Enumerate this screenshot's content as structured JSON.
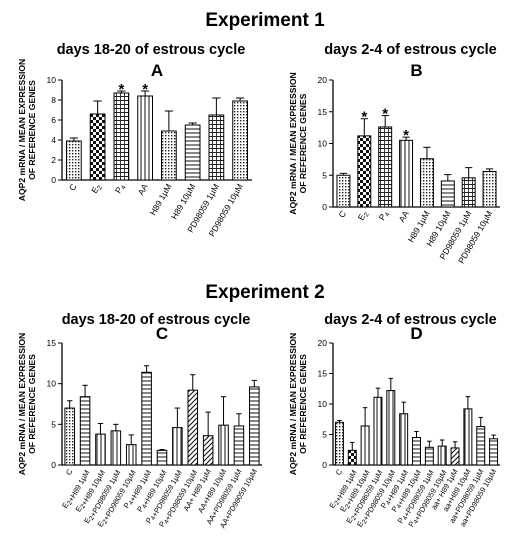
{
  "figure": {
    "experiment_titles": [
      "Experiment 1",
      "Experiment 2"
    ],
    "ylabel_line1": "AQP2 mRNA / MEAN EXPRESSION",
    "ylabel_line2": "OF REFERENCE GENES",
    "asterisk": "*"
  },
  "chart_data": [
    {
      "type": "bar",
      "panel_label": "A",
      "title": "days 18-20 of estrous cycle",
      "ylim": [
        0,
        10
      ],
      "yticks": [
        0,
        2,
        4,
        6,
        8,
        10
      ],
      "categories": [
        "C",
        "E2",
        "P4",
        "AA",
        "H89 1uM",
        "H89 10uM",
        "PD98059 1uM",
        "PD98059 10uM"
      ],
      "values": [
        3.9,
        6.6,
        8.7,
        8.4,
        4.9,
        5.5,
        6.5,
        7.9
      ],
      "errors": [
        0.3,
        1.3,
        0.2,
        0.5,
        2.0,
        0.2,
        1.7,
        0.3
      ],
      "significant": [
        false,
        false,
        true,
        true,
        false,
        false,
        false,
        false
      ],
      "patterns": [
        "dots",
        "checker",
        "cross",
        "vlines",
        "dots",
        "hlines",
        "cross",
        "dots"
      ]
    },
    {
      "type": "bar",
      "panel_label": "B",
      "title": "days 2-4 of estrous cycle",
      "ylim": [
        0,
        20
      ],
      "yticks": [
        0,
        5,
        10,
        15,
        20
      ],
      "categories": [
        "C",
        "E2",
        "P4",
        "AA",
        "H89 1uM",
        "H89 10uM",
        "PD98059 1uM",
        "PD98059 10uM"
      ],
      "values": [
        5.0,
        11.2,
        12.6,
        10.5,
        7.6,
        4.1,
        4.6,
        5.6
      ],
      "errors": [
        0.3,
        2.7,
        1.8,
        0.5,
        1.8,
        1.0,
        1.6,
        0.4
      ],
      "significant": [
        false,
        true,
        true,
        true,
        false,
        false,
        false,
        false
      ],
      "patterns": [
        "dots",
        "checker",
        "cross",
        "vlines",
        "dots",
        "hlines",
        "cross",
        "dots"
      ]
    },
    {
      "type": "bar",
      "panel_label": "C",
      "title": "days 18-20 of estrous cycle",
      "ylim": [
        0,
        15
      ],
      "yticks": [
        0,
        5,
        10,
        15
      ],
      "categories": [
        "C",
        "E2+H89 1uM",
        "E2+H89 10uM",
        "E2+PD98059 1uM",
        "E2+PD98059 10uM",
        "P4+H89 1uM",
        "P4+H89 10uM",
        "P4+PD98059 1uM",
        "P4+PD98059 10uM",
        "AA+ H89 1uM",
        "AA+H89 10uM",
        "AA+PD98059 1uM",
        "AA+PD98059 10uM"
      ],
      "values": [
        7.0,
        8.4,
        3.8,
        4.2,
        2.5,
        11.4,
        1.8,
        4.6,
        9.2,
        3.6,
        4.9,
        4.8,
        9.6
      ],
      "errors": [
        0.9,
        1.4,
        1.3,
        0.8,
        1.2,
        0.8,
        0.1,
        2.4,
        1.9,
        2.9,
        3.5,
        1.5,
        0.8
      ],
      "patterns": [
        "dots",
        "hlines",
        "vlines",
        "vlines",
        "vlines",
        "hlines",
        "hlines",
        "vlines",
        "diag",
        "diag",
        "vlines",
        "hlines",
        "hlines"
      ]
    },
    {
      "type": "bar",
      "panel_label": "D",
      "title": "days 2-4 of estrous cycle",
      "ylim": [
        0,
        20
      ],
      "yticks": [
        0,
        5,
        10,
        15,
        20
      ],
      "categories": [
        "C",
        "E2+H89 1uM",
        "E2+H89 10uM",
        "E2+PD98059 1uM",
        "E2+PD98059 10uM",
        "P4+H89 1uM",
        "P4+H89 10uM",
        "P4+PD98059 1uM",
        "P4+PD98059 10uM",
        "aa+ H89 1uM",
        "aa+H89 10uM",
        "aa+PD98059 1uM",
        "aa+PD98059 10uM"
      ],
      "values": [
        7.0,
        2.4,
        6.4,
        11.1,
        12.2,
        8.4,
        4.5,
        2.9,
        3.1,
        2.8,
        9.2,
        6.3,
        4.3
      ],
      "errors": [
        0.3,
        1.3,
        3.0,
        1.5,
        2.0,
        1.9,
        1.0,
        1.0,
        1.0,
        1.0,
        2.0,
        1.5,
        0.6
      ],
      "patterns": [
        "dots",
        "checker",
        "vlines",
        "vlines",
        "vlines",
        "vlines",
        "hlines",
        "hlines",
        "vlines",
        "diag",
        "vlines",
        "hlines",
        "hlines"
      ]
    }
  ]
}
